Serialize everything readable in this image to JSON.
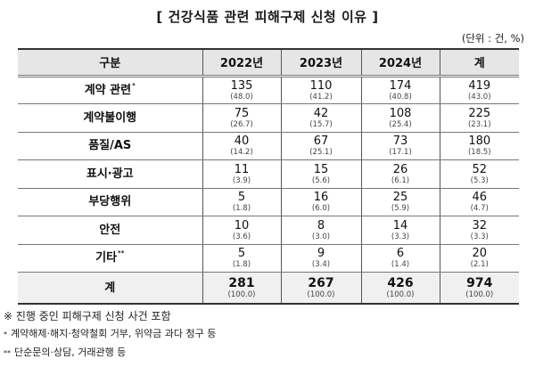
{
  "title": "[ 건강식품 관련 피해구제 신청 이유 ]",
  "unit": "(단위 : 건, %)",
  "table": {
    "headers": [
      "구분",
      "2022년",
      "2023년",
      "2024년",
      "계"
    ],
    "rows": [
      {
        "label": "계약 관련",
        "mark": "*",
        "cells": [
          {
            "n": "135",
            "p": "(48.0)"
          },
          {
            "n": "110",
            "p": "(41.2)"
          },
          {
            "n": "174",
            "p": "(40.8)"
          },
          {
            "n": "419",
            "p": "(43.0)"
          }
        ]
      },
      {
        "label": "계약불이행",
        "mark": "",
        "cells": [
          {
            "n": "75",
            "p": "(26.7)"
          },
          {
            "n": "42",
            "p": "(15.7)"
          },
          {
            "n": "108",
            "p": "(25.4)"
          },
          {
            "n": "225",
            "p": "(23.1)"
          }
        ]
      },
      {
        "label": "품질/AS",
        "mark": "",
        "cells": [
          {
            "n": "40",
            "p": "(14.2)"
          },
          {
            "n": "67",
            "p": "(25.1)"
          },
          {
            "n": "73",
            "p": "(17.1)"
          },
          {
            "n": "180",
            "p": "(18.5)"
          }
        ]
      },
      {
        "label": "표시·광고",
        "mark": "",
        "cells": [
          {
            "n": "11",
            "p": "(3.9)"
          },
          {
            "n": "15",
            "p": "(5.6)"
          },
          {
            "n": "26",
            "p": "(6.1)"
          },
          {
            "n": "52",
            "p": "(5.3)"
          }
        ]
      },
      {
        "label": "부당행위",
        "mark": "",
        "cells": [
          {
            "n": "5",
            "p": "(1.8)"
          },
          {
            "n": "16",
            "p": "(6.0)"
          },
          {
            "n": "25",
            "p": "(5.9)"
          },
          {
            "n": "46",
            "p": "(4.7)"
          }
        ]
      },
      {
        "label": "안전",
        "mark": "",
        "cells": [
          {
            "n": "10",
            "p": "(3.6)"
          },
          {
            "n": "8",
            "p": "(3.0)"
          },
          {
            "n": "14",
            "p": "(3.3)"
          },
          {
            "n": "32",
            "p": "(3.3)"
          }
        ]
      },
      {
        "label": "기타",
        "mark": "**",
        "cells": [
          {
            "n": "5",
            "p": "(1.8)"
          },
          {
            "n": "9",
            "p": "(3.4)"
          },
          {
            "n": "6",
            "p": "(1.4)"
          },
          {
            "n": "20",
            "p": "(2.1)"
          }
        ]
      }
    ],
    "total": {
      "label": "계",
      "cells": [
        {
          "n": "281",
          "p": "(100.0)"
        },
        {
          "n": "267",
          "p": "(100.0)"
        },
        {
          "n": "426",
          "p": "(100.0)"
        },
        {
          "n": "974",
          "p": "(100.0)"
        }
      ]
    }
  },
  "notes": {
    "n1": "※ 진행 중인 피해구제 신청 사건 포함",
    "n2_mark": "*",
    "n2": "계약해제·해지·청약철회 거부, 위약금 과다 청구 등",
    "n3_mark": "**",
    "n3": "단순문의·상담, 거래관행 등"
  }
}
